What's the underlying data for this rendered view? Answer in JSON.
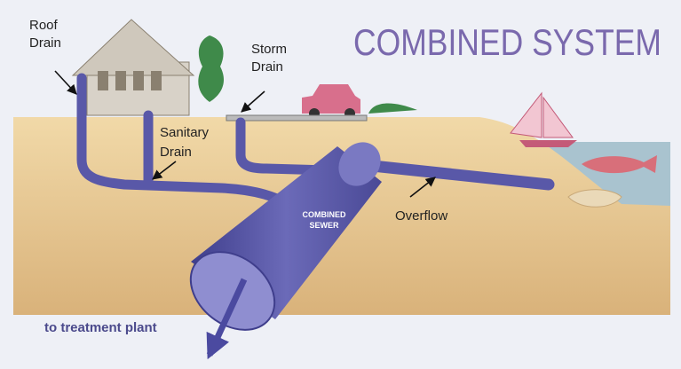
{
  "title": "COMBINED SYSTEM",
  "labels": {
    "roof_drain": [
      "Roof",
      "Drain"
    ],
    "storm_drain": [
      "Storm",
      "Drain"
    ],
    "sanitary_drain": [
      "Sanitary",
      "Drain"
    ],
    "combined_sewer": [
      "COMBINED",
      "SEWER"
    ],
    "overflow": "Overflow",
    "treatment": "to treatment plant"
  }
}
